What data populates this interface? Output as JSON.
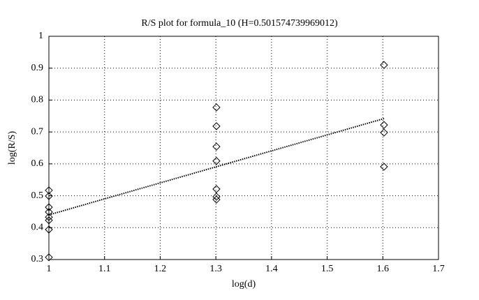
{
  "chart_data": {
    "type": "scatter",
    "title": "R/S plot for formula_10 (H=0.501574739969012)",
    "x_label": "log(d)",
    "y_label": "log(R/S)",
    "xlim": [
      1,
      1.7
    ],
    "ylim": [
      0.3,
      1
    ],
    "xticks": [
      1,
      1.1,
      1.2,
      1.3,
      1.4,
      1.5,
      1.6,
      1.7
    ],
    "yticks": [
      0.3,
      0.4,
      0.5,
      0.6,
      0.7,
      0.8,
      0.9,
      1
    ],
    "grid": true,
    "series": [
      {
        "kind": "scatter",
        "marker": "diamond",
        "color": "#000000",
        "x": [
          1,
          1,
          1,
          1,
          1,
          1,
          1,
          1,
          1.30103,
          1.30103,
          1.30103,
          1.30103,
          1.30103,
          1.30103,
          1.30103,
          1.60206,
          1.60206,
          1.60206,
          1.60206
        ],
        "values": [
          0.517,
          0.499,
          0.464,
          0.449,
          0.433,
          0.423,
          0.394,
          0.307,
          0.777,
          0.718,
          0.654,
          0.609,
          0.521,
          0.497,
          0.488,
          0.91,
          0.722,
          0.698,
          0.591
        ]
      },
      {
        "kind": "line",
        "style": "dotted",
        "color": "#000000",
        "x": [
          1,
          1.60206
        ],
        "values": [
          0.44,
          0.742
        ]
      }
    ]
  }
}
